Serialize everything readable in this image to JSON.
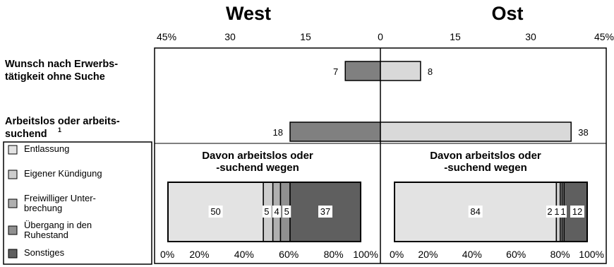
{
  "chart_data": [
    {
      "type": "bar",
      "orientation": "horizontal-diverging",
      "panels": [
        "West",
        "Ost"
      ],
      "categories": [
        [
          "Wunsch nach Erwerbs-",
          "tätigkeit ohne Suche"
        ],
        [
          "Arbeitslos oder arbeits-",
          "suchend"
        ]
      ],
      "category_footnote": "1",
      "series": [
        {
          "name": "West",
          "values": [
            7,
            18
          ],
          "color": "#808080"
        },
        {
          "name": "Ost",
          "values": [
            8,
            38
          ],
          "color": "#d9d9d9"
        }
      ],
      "axis": {
        "ticks": [
          "45%",
          "30",
          "15",
          "0",
          "15",
          "30",
          "45%"
        ],
        "range": [
          0,
          45
        ]
      }
    },
    {
      "type": "bar",
      "orientation": "horizontal-stacked-100",
      "subtitles": {
        "West": [
          "Davon arbeitslos oder",
          "-suchend wegen"
        ],
        "Ost": [
          "Davon arbeitslos oder",
          "-suchend wegen"
        ]
      },
      "legend": [
        {
          "label": [
            "Entlassung"
          ],
          "color": "#e3e3e3"
        },
        {
          "label": [
            "Eigener Kündigung"
          ],
          "color": "#cdcdcd"
        },
        {
          "label": [
            "Freiwilliger Unter-",
            "brechung"
          ],
          "color": "#b0b0b0"
        },
        {
          "label": [
            "Übergang in den",
            "Ruhestand"
          ],
          "color": "#909090"
        },
        {
          "label": [
            "Sonstiges"
          ],
          "color": "#5f5f5f"
        }
      ],
      "bars": [
        {
          "name": "West",
          "values": [
            50,
            5,
            4,
            5,
            37
          ],
          "labels": [
            "50",
            "5",
            "4",
            "5",
            "37"
          ]
        },
        {
          "name": "Ost",
          "values": [
            84,
            2,
            1,
            1,
            12
          ],
          "labels": [
            "84",
            "2",
            "1",
            "1",
            "12"
          ]
        }
      ],
      "axis": {
        "ticks": [
          "0%",
          "20%",
          "40%",
          "60%",
          "80%",
          "100%"
        ],
        "range": [
          0,
          100
        ]
      }
    }
  ]
}
